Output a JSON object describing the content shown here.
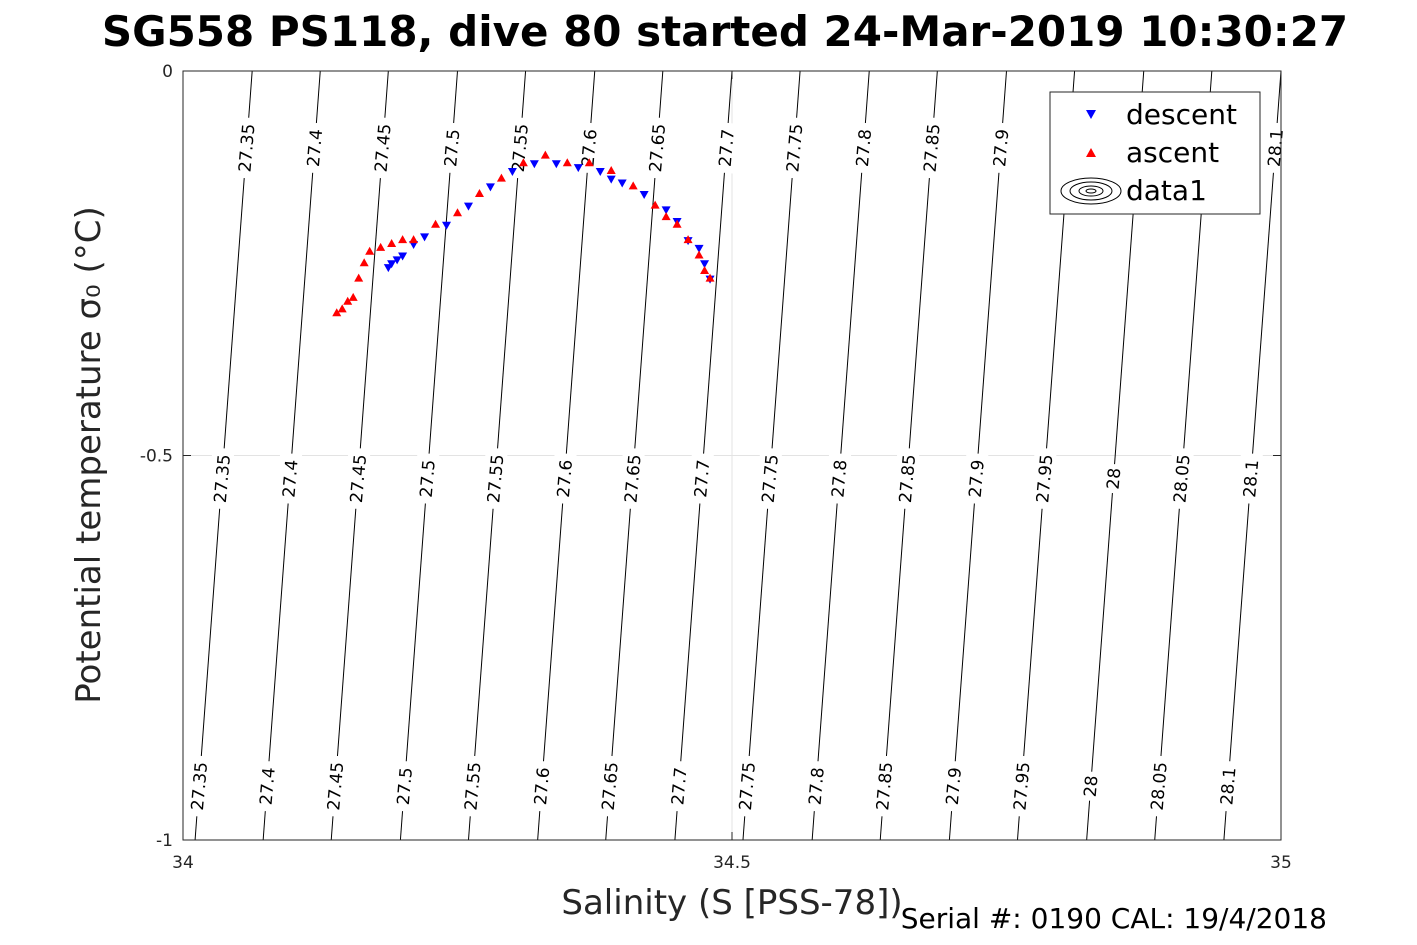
{
  "chart_data": {
    "type": "scatter",
    "title": "SG558 PS118, dive 80 started 24-Mar-2019 10:30:27",
    "xlabel": "Salinity (S [PSS-78])",
    "ylabel": "Potential temperature σ₀ (°C)",
    "xlim": [
      34,
      35
    ],
    "ylim": [
      -1,
      0
    ],
    "x_ticks": [
      "34",
      "34.5",
      "35"
    ],
    "y_ticks": [
      "0",
      "-0.5",
      "-1"
    ],
    "grid": true,
    "legend_position": "top-right",
    "legend": [
      "descent",
      "ascent",
      "data1"
    ],
    "series": [
      {
        "name": "descent",
        "marker": "triangle-down",
        "color": "#0000ff",
        "x": [
          34.187,
          34.19,
          34.195,
          34.2,
          34.21,
          34.22,
          34.24,
          34.26,
          34.28,
          34.3,
          34.32,
          34.34,
          34.36,
          34.38,
          34.39,
          34.4,
          34.42,
          34.44,
          34.45,
          34.46,
          34.47,
          34.475,
          34.48
        ],
        "y": [
          -0.255,
          -0.25,
          -0.245,
          -0.24,
          -0.225,
          -0.215,
          -0.2,
          -0.175,
          -0.15,
          -0.13,
          -0.12,
          -0.12,
          -0.125,
          -0.13,
          -0.14,
          -0.145,
          -0.16,
          -0.18,
          -0.195,
          -0.22,
          -0.23,
          -0.25,
          -0.27
        ]
      },
      {
        "name": "ascent",
        "marker": "triangle-up",
        "color": "#ff0000",
        "x": [
          34.14,
          34.145,
          34.15,
          34.155,
          34.16,
          34.165,
          34.17,
          34.18,
          34.19,
          34.2,
          34.21,
          34.23,
          34.25,
          34.27,
          34.29,
          34.31,
          34.33,
          34.35,
          34.37,
          34.39,
          34.41,
          34.43,
          34.44,
          34.45,
          34.46,
          34.47,
          34.475,
          34.48
        ],
        "y": [
          -0.315,
          -0.31,
          -0.3,
          -0.295,
          -0.27,
          -0.25,
          -0.235,
          -0.23,
          -0.225,
          -0.22,
          -0.22,
          -0.2,
          -0.185,
          -0.16,
          -0.14,
          -0.12,
          -0.11,
          -0.12,
          -0.12,
          -0.13,
          -0.15,
          -0.175,
          -0.19,
          -0.2,
          -0.22,
          -0.24,
          -0.26,
          -0.27
        ]
      }
    ],
    "contours": {
      "name": "data1",
      "units": "sigma0",
      "lines": [
        {
          "value": 27.35,
          "label": "27.35",
          "s_top": 34.063,
          "s_bottom": 34.011
        },
        {
          "value": 27.4,
          "label": "27.4",
          "s_top": 34.125,
          "s_bottom": 34.073
        },
        {
          "value": 27.45,
          "label": "27.45",
          "s_top": 34.187,
          "s_bottom": 34.135
        },
        {
          "value": 27.5,
          "label": "27.5",
          "s_top": 34.25,
          "s_bottom": 34.198
        },
        {
          "value": 27.55,
          "label": "27.55",
          "s_top": 34.312,
          "s_bottom": 34.26
        },
        {
          "value": 27.6,
          "label": "27.6",
          "s_top": 34.375,
          "s_bottom": 34.323
        },
        {
          "value": 27.65,
          "label": "27.65",
          "s_top": 34.437,
          "s_bottom": 34.385
        },
        {
          "value": 27.7,
          "label": "27.7",
          "s_top": 34.5,
          "s_bottom": 34.448
        },
        {
          "value": 27.75,
          "label": "27.75",
          "s_top": 34.562,
          "s_bottom": 34.51
        },
        {
          "value": 27.8,
          "label": "27.8",
          "s_top": 34.625,
          "s_bottom": 34.573
        },
        {
          "value": 27.85,
          "label": "27.85",
          "s_top": 34.687,
          "s_bottom": 34.635
        },
        {
          "value": 27.9,
          "label": "27.9",
          "s_top": 34.75,
          "s_bottom": 34.698
        },
        {
          "value": 27.95,
          "label": "27.95",
          "s_top": 34.812,
          "s_bottom": 34.76
        },
        {
          "value": 28.0,
          "label": "28",
          "s_top": 34.875,
          "s_bottom": 34.823
        },
        {
          "value": 28.05,
          "label": "28.05",
          "s_top": 34.937,
          "s_bottom": 34.885
        },
        {
          "value": 28.1,
          "label": "28.1",
          "s_top": 35.0,
          "s_bottom": 34.948
        }
      ],
      "label_rows": [
        {
          "y": -0.1,
          "labels": [
            "27.35",
            "27.4",
            "27.45",
            "27.5",
            "27.55",
            "27.6",
            "27.65",
            "27.7",
            "27.75",
            "27.8",
            "27.85",
            "27.9",
            "28.1"
          ]
        },
        {
          "y": -0.53,
          "labels": [
            "27.35",
            "27.4",
            "27.45",
            "27.5",
            "27.55",
            "27.6",
            "27.65",
            "27.7",
            "27.75",
            "27.8",
            "27.85",
            "27.9",
            "27.95",
            "28",
            "28.05",
            "28.1"
          ]
        },
        {
          "y": -0.93,
          "labels": [
            "27.35",
            "27.4",
            "27.45",
            "27.5",
            "27.55",
            "27.6",
            "27.65",
            "27.7",
            "27.75",
            "27.8",
            "27.85",
            "27.9",
            "27.95",
            "28",
            "28.05",
            "28.1"
          ]
        }
      ]
    }
  },
  "footer": {
    "serial": "Serial #: 0190  CAL: 19/4/2018"
  }
}
